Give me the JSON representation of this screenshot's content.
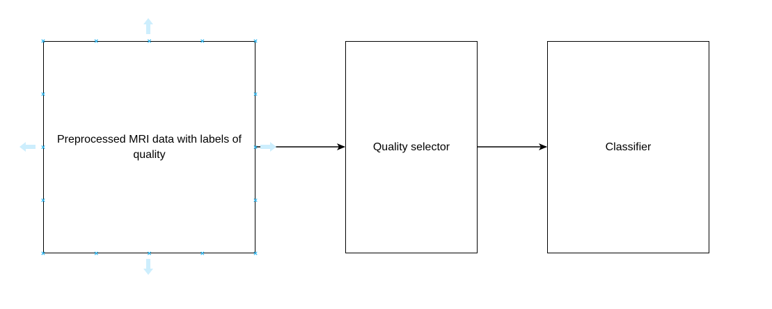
{
  "diagram": {
    "nodes": [
      {
        "id": "preprocessed",
        "label": "Preprocessed MRI data with labels of quality",
        "selected": true
      },
      {
        "id": "quality",
        "label": "Quality selector",
        "selected": false
      },
      {
        "id": "classifier",
        "label": "Classifier",
        "selected": false
      }
    ],
    "edges": [
      {
        "from": "preprocessed",
        "to": "quality"
      },
      {
        "from": "quality",
        "to": "classifier"
      }
    ],
    "colors": {
      "stroke": "#000000",
      "background": "#ffffff",
      "selection_handle": "#29b6f2",
      "hover_arrow": "#cdeefd"
    },
    "icons": {
      "selection_handle": "resize-handle-icon",
      "hover_arrow": "connect-arrow-icon"
    }
  }
}
